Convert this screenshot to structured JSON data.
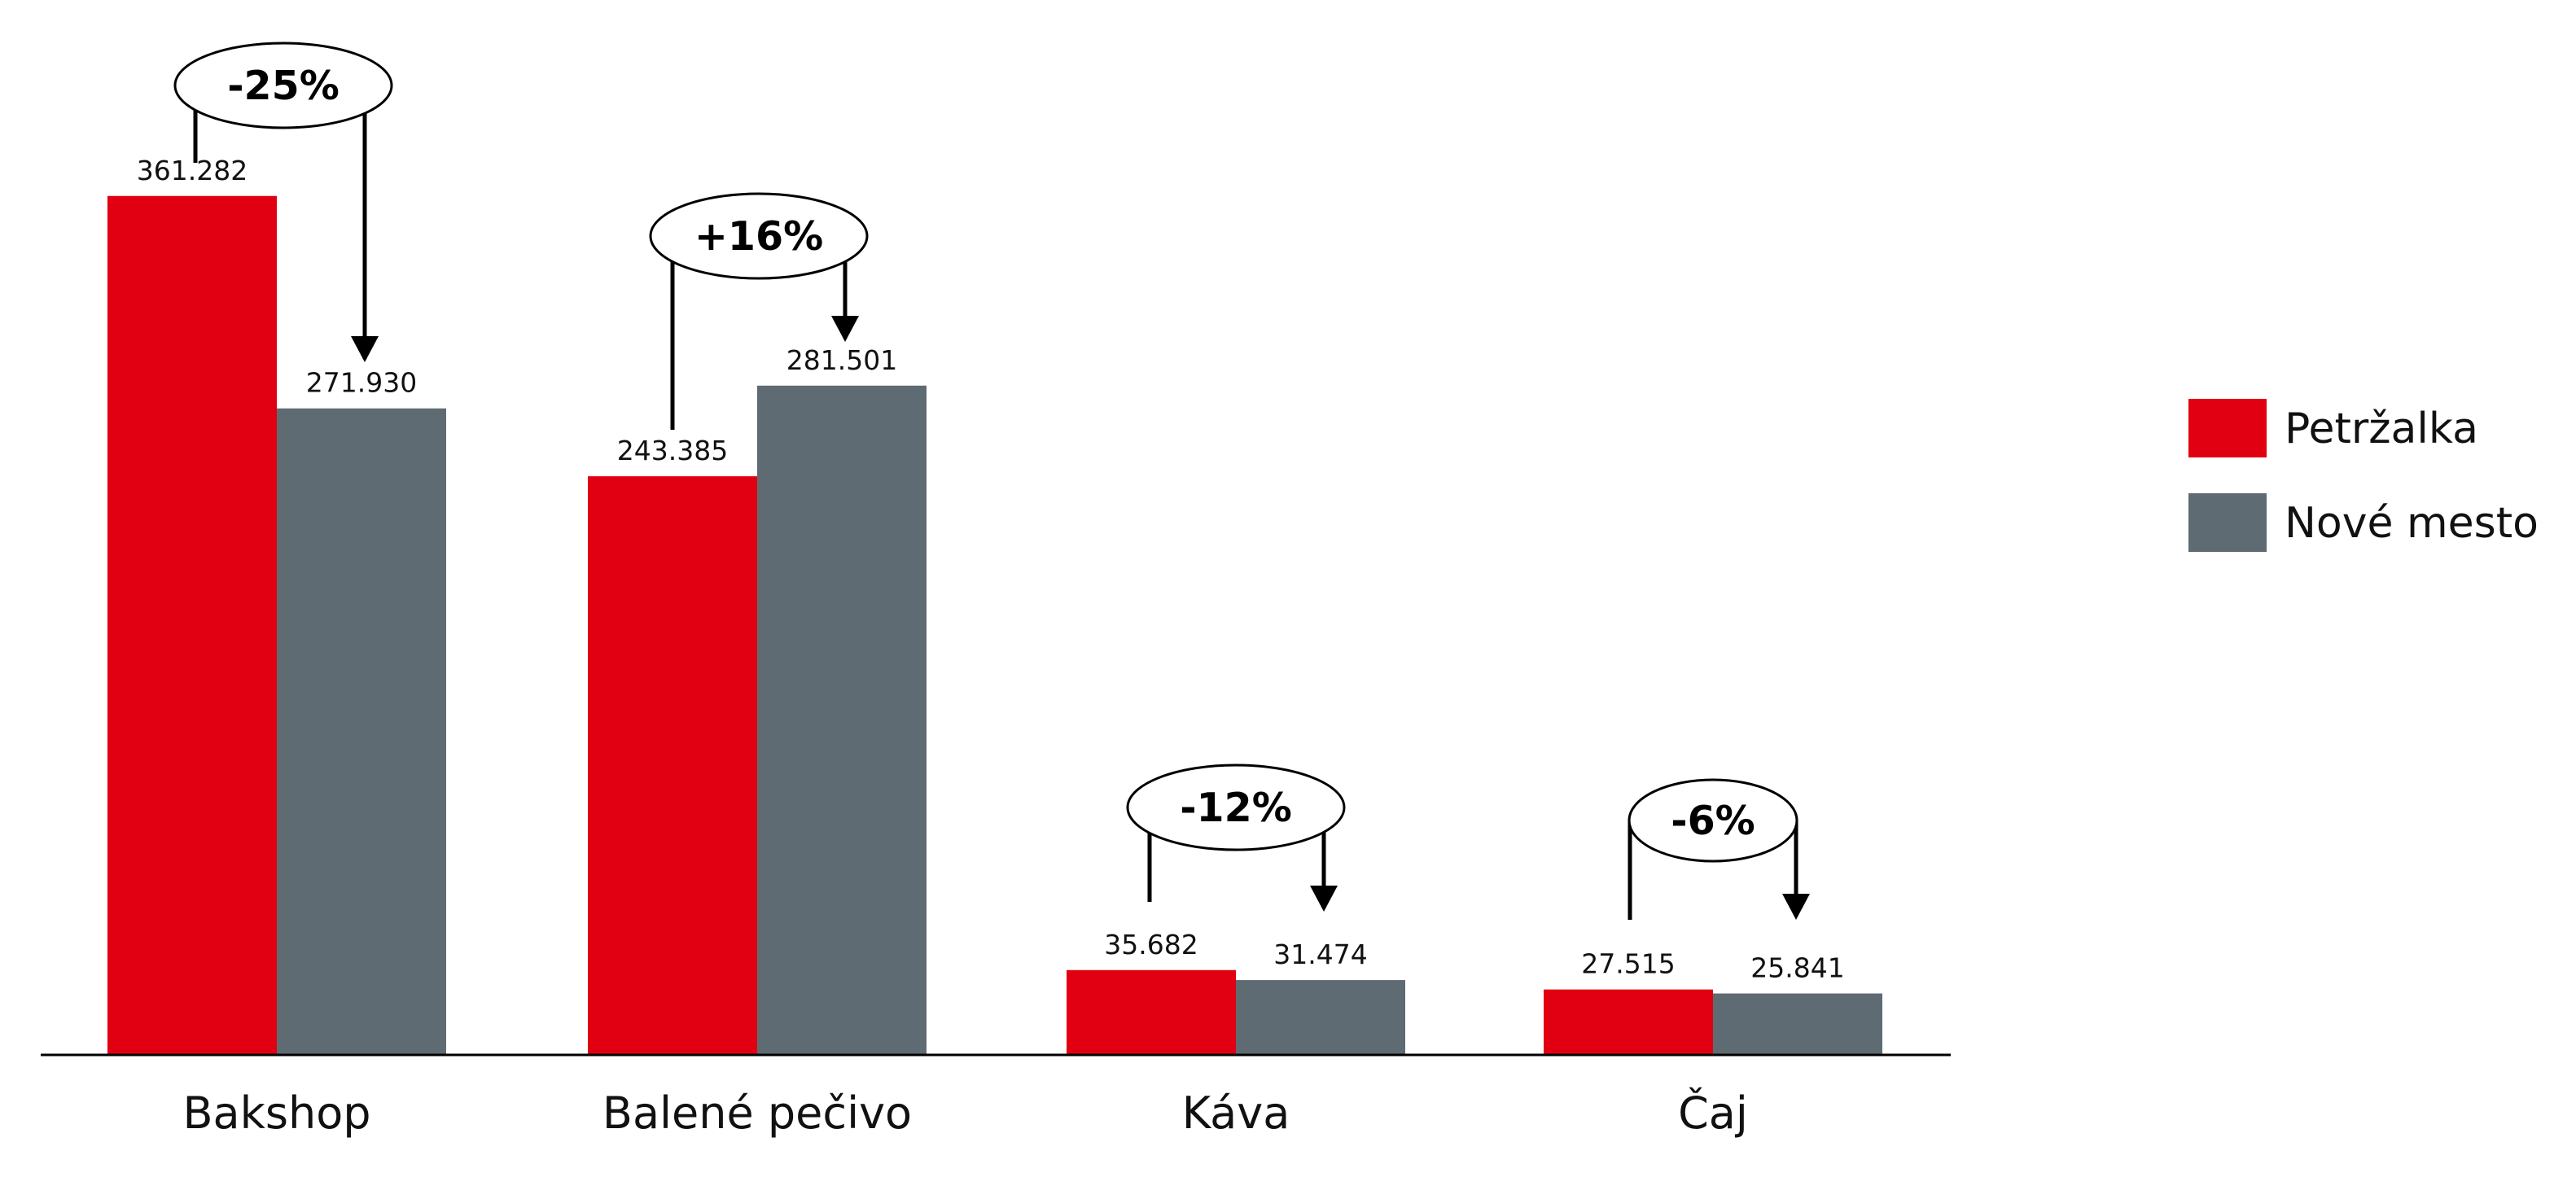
{
  "chart_data": {
    "type": "bar",
    "categories": [
      "Bakshop",
      "Balené pečivo",
      "Káva",
      "Čaj"
    ],
    "series": [
      {
        "name": "Petržalka",
        "color": "#e10011",
        "values": [
          361282,
          243385,
          35682,
          27515
        ],
        "labels": [
          "361.282",
          "243.385",
          "35.682",
          "27.515"
        ]
      },
      {
        "name": "Nové mesto",
        "color": "#5f6b72",
        "values": [
          271930,
          281501,
          31474,
          25841
        ],
        "labels": [
          "271.930",
          "281.501",
          "31.474",
          "25.841"
        ]
      }
    ],
    "changes": [
      "-25%",
      "+16%",
      "-12%",
      "-6%"
    ],
    "ylim": [
      0,
      380000
    ],
    "grid": false,
    "legend_position": "right"
  }
}
